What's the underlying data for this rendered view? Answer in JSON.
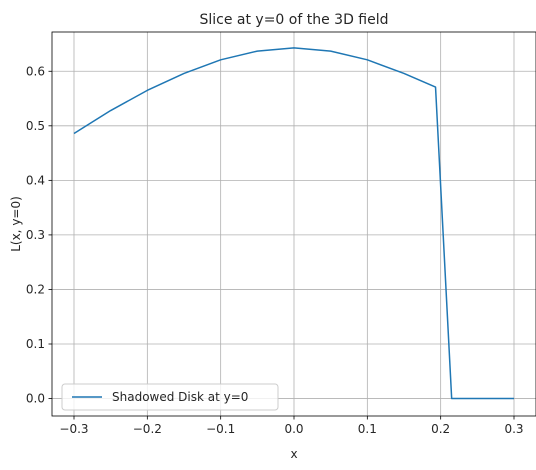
{
  "chart_data": {
    "type": "line",
    "title": "Slice at y=0 of the 3D field",
    "xlabel": "x",
    "ylabel": "L(x, y=0)",
    "xlim": [
      -0.33,
      0.33
    ],
    "ylim": [
      -0.032,
      0.672
    ],
    "xticks": [
      -0.3,
      -0.2,
      -0.1,
      0.0,
      0.1,
      0.2,
      0.3
    ],
    "xtick_labels": [
      "−0.3",
      "−0.2",
      "−0.1",
      "0.0",
      "0.1",
      "0.2",
      "0.3"
    ],
    "yticks": [
      0.0,
      0.1,
      0.2,
      0.3,
      0.4,
      0.5,
      0.6
    ],
    "ytick_labels": [
      "0.0",
      "0.1",
      "0.2",
      "0.3",
      "0.4",
      "0.5",
      "0.6"
    ],
    "grid": true,
    "legend_position": "lower-left",
    "series": [
      {
        "name": "Shadowed Disk at y=0",
        "color": "#1f77b4",
        "x": [
          -0.3,
          -0.25,
          -0.2,
          -0.15,
          -0.1,
          -0.05,
          0.0,
          0.05,
          0.1,
          0.15,
          0.193,
          0.215,
          0.25,
          0.3
        ],
        "y": [
          0.486,
          0.528,
          0.565,
          0.596,
          0.621,
          0.637,
          0.643,
          0.637,
          0.621,
          0.596,
          0.571,
          0.0,
          0.0,
          0.0
        ]
      }
    ]
  }
}
